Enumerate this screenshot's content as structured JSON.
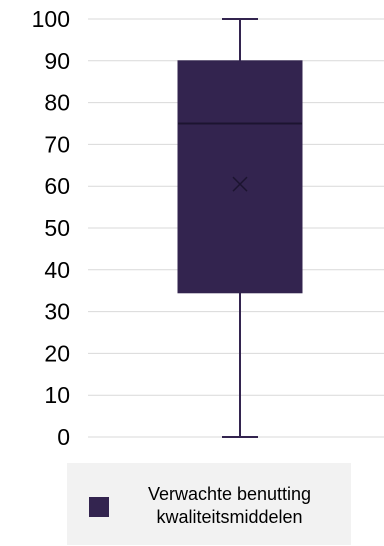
{
  "chart_data": {
    "type": "box",
    "ylim": [
      0,
      100
    ],
    "y_ticks": [
      0,
      10,
      20,
      30,
      40,
      50,
      60,
      70,
      80,
      90,
      100
    ],
    "grid": true,
    "legend_position": "bottom",
    "series": [
      {
        "name": "Verwachte benutting kwaliteitsmiddelen",
        "min": 0,
        "q1": 34.5,
        "median": 75,
        "mean": 60.5,
        "q3": 90,
        "max": 100,
        "color": "#33244f"
      }
    ]
  },
  "legend": {
    "line1": "Verwachte benutting",
    "line2": "kwaliteitsmiddelen"
  }
}
